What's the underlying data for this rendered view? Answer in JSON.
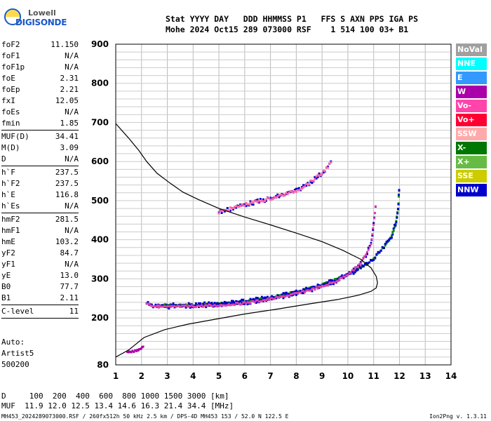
{
  "logo": {
    "brand": "Lowell",
    "product": "DIGISONDE"
  },
  "header": {
    "labels_line": "Stat YYYY DAY   DDD HHMMSS P1   FFS S AXN PPS IGA PS",
    "values_line": "Mohe 2024 Oct15 289 073000 RSF    1 514 100 03+ B1"
  },
  "params": [
    {
      "k": "foF2",
      "v": "11.150"
    },
    {
      "k": "foF1",
      "v": "N/A"
    },
    {
      "k": "foF1p",
      "v": "N/A"
    },
    {
      "k": "foE",
      "v": "2.31"
    },
    {
      "k": "foEp",
      "v": "2.21"
    },
    {
      "k": "fxI",
      "v": "12.05"
    },
    {
      "k": "foEs",
      "v": "N/A"
    },
    {
      "k": "fmin",
      "v": "1.85"
    },
    {
      "sep": true
    },
    {
      "k": "MUF(D)",
      "v": "34.41"
    },
    {
      "k": "M(D)",
      "v": "3.09"
    },
    {
      "k": "D",
      "v": "N/A"
    },
    {
      "sep": true
    },
    {
      "k": "h`F",
      "v": "237.5"
    },
    {
      "k": "h`F2",
      "v": "237.5"
    },
    {
      "k": "h`E",
      "v": "116.8"
    },
    {
      "k": "h`Es",
      "v": "N/A"
    },
    {
      "sep": true
    },
    {
      "k": "hmF2",
      "v": "281.5"
    },
    {
      "k": "hmF1",
      "v": "N/A"
    },
    {
      "k": "hmE",
      "v": "103.2"
    },
    {
      "k": "yF2",
      "v": "84.7"
    },
    {
      "k": "yF1",
      "v": "N/A"
    },
    {
      "k": "yE",
      "v": "13.0"
    },
    {
      "k": "B0",
      "v": "77.7"
    },
    {
      "k": "B1",
      "v": "2.11"
    },
    {
      "sep": true
    },
    {
      "k": "C-level",
      "v": "11"
    },
    {
      "sep": true
    }
  ],
  "auto": {
    "l1": "Auto:",
    "l2": "Artist5",
    "l3": "500200"
  },
  "legend": [
    {
      "name": "NoVal",
      "color": "#a0a0a0"
    },
    {
      "name": "NNE",
      "color": "#00ffff"
    },
    {
      "name": "E",
      "color": "#3399ff"
    },
    {
      "name": "W",
      "color": "#aa00aa"
    },
    {
      "name": "Vo-",
      "color": "#ff44aa"
    },
    {
      "name": "Vo+",
      "color": "#ff0033"
    },
    {
      "name": "SSW",
      "color": "#ffaaaa"
    },
    {
      "name": "X-",
      "color": "#007700"
    },
    {
      "name": "X+",
      "color": "#66bb44"
    },
    {
      "name": "SSE",
      "color": "#cccc00"
    },
    {
      "name": "NNW",
      "color": "#0000cc"
    }
  ],
  "footer": {
    "d_line": "D     100  200  400  600  800 1000 1500 3000 [km]",
    "muf_line": "MUF  11.9 12.0 12.5 13.4 14.6 16.3 21.4 34.4 [MHz]",
    "file_line": "MH453_2024289073000.RSF / 260fx512h 50 kHz 2.5 km / DPS-4D MH453 153 / 52.0 N 122.5 E",
    "version": "Ion2Png v. 1.3.11"
  },
  "chart_data": {
    "type": "scatter",
    "xlim": [
      1,
      14
    ],
    "ylim": [
      80,
      900
    ],
    "xticks": [
      1,
      2,
      3,
      4,
      5,
      6,
      7,
      8,
      9,
      10,
      11,
      12,
      13,
      14
    ],
    "yticks": [
      80,
      200,
      300,
      400,
      500,
      600,
      700,
      800,
      900
    ],
    "grid": true,
    "profile": {
      "x": [
        1.0,
        1.5,
        1.9,
        2.2,
        2.6,
        3.1,
        3.6,
        4.2,
        5,
        6,
        7,
        8,
        9,
        9.8,
        10.5,
        10.9,
        11.1,
        11.15,
        11.1,
        10.9,
        10.4,
        9.6,
        8.5,
        7.2,
        6,
        4.8,
        3.8,
        2.9,
        2.1,
        1.5,
        1.0
      ],
      "y": [
        697,
        660,
        628,
        600,
        570,
        545,
        522,
        503,
        480,
        458,
        438,
        417,
        395,
        373,
        350,
        328,
        306,
        290,
        277,
        268,
        258,
        247,
        236,
        222,
        210,
        196,
        184,
        170,
        150,
        118,
        100
      ]
    },
    "o_trace": {
      "x": [
        2.2,
        2.4,
        2.6,
        2.7,
        2.9,
        3.5,
        4,
        5,
        6,
        7,
        8,
        9,
        9.5,
        10,
        10.4,
        10.7,
        10.9,
        11.0,
        11.1
      ],
      "y": [
        238,
        232,
        230,
        229,
        228,
        229,
        230,
        232,
        238,
        248,
        262,
        280,
        292,
        312,
        332,
        360,
        390,
        440,
        500
      ]
    },
    "x_trace": {
      "x": [
        2.8,
        3.5,
        4,
        5,
        6,
        7,
        8,
        9,
        10,
        10.5,
        11,
        11.4,
        11.7,
        11.85,
        11.95,
        12.0
      ],
      "y": [
        233,
        232,
        233,
        236,
        242,
        252,
        266,
        284,
        310,
        328,
        350,
        380,
        410,
        440,
        480,
        540
      ]
    },
    "f2_oblique": {
      "x": [
        5.0,
        6.0,
        7.0,
        8.0,
        8.5,
        9.0,
        9.4
      ],
      "y": [
        470,
        490,
        505,
        525,
        545,
        570,
        600
      ]
    },
    "e_trace": {
      "x": [
        1.45,
        1.6,
        1.8,
        1.95,
        2.1
      ],
      "y": [
        112,
        113,
        116,
        121,
        130
      ]
    }
  }
}
